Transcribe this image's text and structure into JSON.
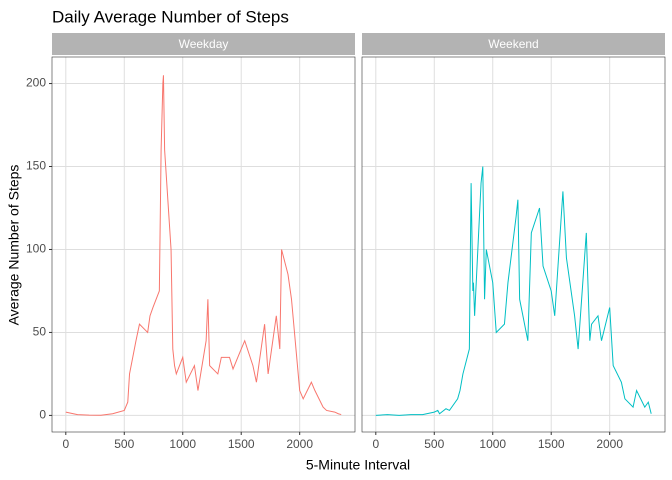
{
  "chart_data": {
    "type": "line",
    "title": "Daily Average Number of Steps",
    "xlabel": "5-Minute Interval",
    "ylabel": "Average Number of Steps",
    "x": [
      0,
      100,
      200,
      300,
      400,
      500,
      530,
      545,
      600,
      630,
      700,
      720,
      745,
      800,
      815,
      830,
      835,
      845,
      900,
      915,
      930,
      945,
      1000,
      1030,
      1100,
      1130,
      1200,
      1215,
      1230,
      1300,
      1330,
      1400,
      1430,
      1500,
      1530,
      1600,
      1630,
      1700,
      1730,
      1800,
      1830,
      1845,
      1900,
      1930,
      2000,
      2030,
      2100,
      2130,
      2200,
      2230,
      2300,
      2330,
      2355
    ],
    "series": [
      {
        "name": "Weekday",
        "color": "#F8766D",
        "values": [
          2,
          0.5,
          0.2,
          0.1,
          1,
          3,
          8,
          25,
          45,
          55,
          50,
          60,
          65,
          75,
          160,
          200,
          205,
          160,
          100,
          40,
          30,
          25,
          35,
          20,
          30,
          15,
          45,
          70,
          30,
          25,
          35,
          35,
          28,
          40,
          45,
          30,
          20,
          55,
          25,
          60,
          40,
          100,
          85,
          70,
          15,
          10,
          20,
          15,
          5,
          3,
          2,
          1,
          0.5
        ]
      },
      {
        "name": "Weekend",
        "color": "#00BFC4",
        "values": [
          0,
          0.5,
          0,
          0.5,
          0.5,
          2,
          3,
          1,
          4,
          3,
          10,
          15,
          25,
          40,
          140,
          75,
          80,
          60,
          140,
          150,
          70,
          100,
          80,
          50,
          55,
          80,
          120,
          130,
          70,
          45,
          110,
          125,
          90,
          75,
          60,
          135,
          95,
          60,
          40,
          110,
          45,
          55,
          60,
          45,
          65,
          30,
          20,
          10,
          5,
          15,
          5,
          8,
          1
        ]
      }
    ],
    "xlim": [
      -118,
      2473
    ],
    "ylim": [
      -10,
      216
    ],
    "xticks": [
      0,
      500,
      1000,
      1500,
      2000
    ],
    "yticks": [
      0,
      50,
      100,
      150,
      200
    ],
    "grid": true
  }
}
